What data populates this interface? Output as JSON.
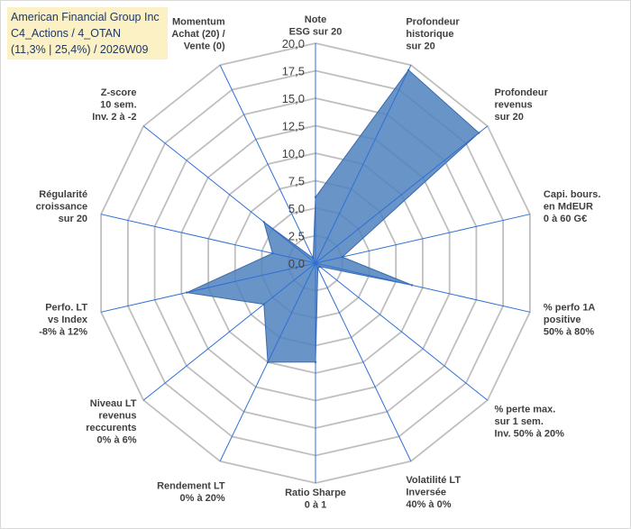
{
  "title": {
    "line1": "American Financial Group Inc",
    "line2": "C4_Actions / 4_OTAN",
    "line3": "(11,3% | 25,4%) / 2026W09"
  },
  "chart_data": {
    "type": "radar",
    "title": "American Financial Group Inc",
    "rmin": 0,
    "rmax": 20,
    "ticks": [
      "0,0",
      "2,5",
      "5,0",
      "7,5",
      "10,0",
      "12,5",
      "15,0",
      "17,5",
      "20,0"
    ],
    "grid": true,
    "categories": [
      [
        "Note",
        "ESG sur 20"
      ],
      [
        "Profondeur",
        "historique",
        "sur 20"
      ],
      [
        "Profondeur",
        "revenus",
        "sur 20"
      ],
      [
        "Capi. bours.",
        "en MdEUR",
        "0 à 60 G€"
      ],
      [
        "% perfo 1A",
        "positive",
        "50% à 80%"
      ],
      [
        "% perte max.",
        "sur 1 sem.",
        "Inv. 50% à 20%"
      ],
      [
        "Volatilité LT",
        "Inversée",
        "40% à 0%"
      ],
      [
        "Ratio Sharpe",
        "0 à 1"
      ],
      [
        "Rendement LT",
        "0% à 20%"
      ],
      [
        "Niveau LT",
        "revenus",
        "reccurents",
        "0% à 6%"
      ],
      [
        "Perfo. LT",
        "vs Index",
        "-8% à 12%"
      ],
      [
        "Régularité",
        "croissance",
        "sur 20"
      ],
      [
        "Z-score",
        "10 sem.",
        "Inv. 2 à -2"
      ],
      [
        "Momentum",
        "Achat (20) /",
        "Vente (0)"
      ]
    ],
    "series": [
      {
        "values": [
          6.0,
          19.5,
          19.0,
          2.5,
          9.0,
          0.5,
          0.5,
          9.0,
          10.0,
          6.0,
          12.0,
          4.0,
          6.0,
          0.5
        ],
        "color": "#4f81bd"
      }
    ]
  }
}
